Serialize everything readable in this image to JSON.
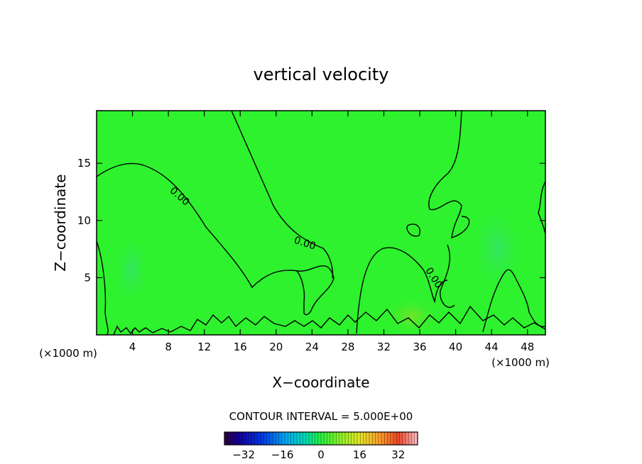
{
  "chart_data": {
    "type": "heatmap",
    "title": "vertical velocity",
    "xlabel": "X−coordinate",
    "ylabel": "Z−coordinate",
    "x_unit_left": "(×1000 m)",
    "x_unit_right": "(×1000 m)",
    "xlim": [
      0,
      50
    ],
    "ylim": [
      0,
      19.6
    ],
    "x_ticks": [
      4,
      8,
      12,
      16,
      20,
      24,
      28,
      32,
      36,
      40,
      44,
      48
    ],
    "y_ticks": [
      5,
      10,
      15
    ],
    "contour_label": "0.00",
    "contour_interval_text": "CONTOUR INTERVAL = 5.000E+00",
    "colorbar": {
      "min": -40,
      "max": 40,
      "tick_values": [
        -32,
        -16,
        0,
        16,
        32
      ],
      "tick_labels": [
        "−32",
        "−16",
        "0",
        "16",
        "32"
      ]
    },
    "colors": {
      "field": "#2df22d",
      "contour": "#000000"
    }
  }
}
